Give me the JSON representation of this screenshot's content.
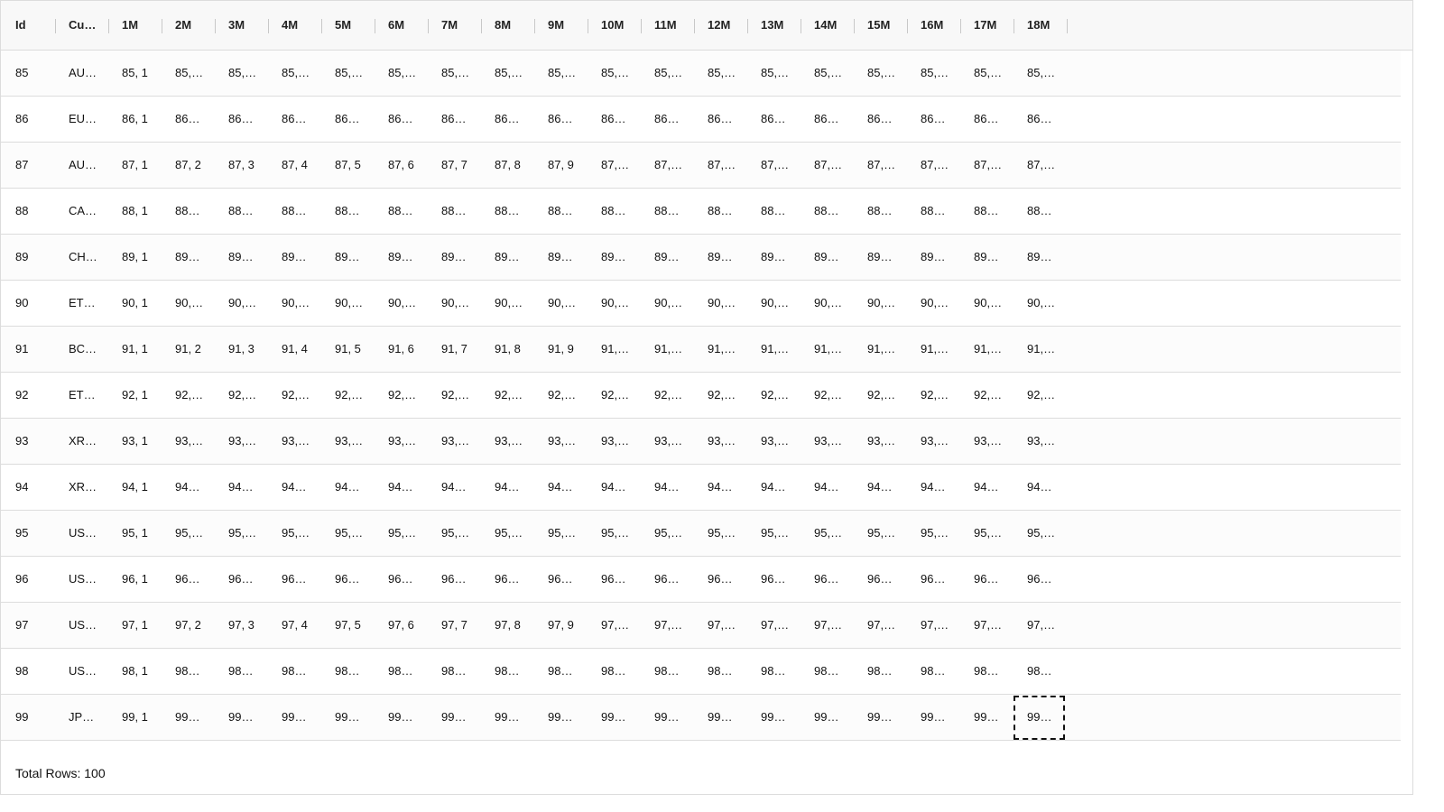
{
  "table": {
    "columns": [
      "Id",
      "Cu…",
      "1M",
      "2M",
      "3M",
      "4M",
      "5M",
      "6M",
      "7M",
      "8M",
      "9M",
      "10M",
      "11M",
      "12M",
      "13M",
      "14M",
      "15M",
      "16M",
      "17M",
      "18M"
    ],
    "rows": [
      [
        "85",
        "AU…",
        "85, 1",
        "85,…",
        "85,…",
        "85,…",
        "85,…",
        "85,…",
        "85,…",
        "85,…",
        "85,…",
        "85,…",
        "85,…",
        "85,…",
        "85,…",
        "85,…",
        "85,…",
        "85,…",
        "85,…",
        "85,…"
      ],
      [
        "86",
        "EU…",
        "86, 1",
        "86…",
        "86…",
        "86…",
        "86…",
        "86…",
        "86…",
        "86…",
        "86…",
        "86…",
        "86…",
        "86…",
        "86…",
        "86…",
        "86…",
        "86…",
        "86…",
        "86…"
      ],
      [
        "87",
        "AU…",
        "87, 1",
        "87, 2",
        "87, 3",
        "87, 4",
        "87, 5",
        "87, 6",
        "87, 7",
        "87, 8",
        "87, 9",
        "87,…",
        "87,…",
        "87,…",
        "87,…",
        "87,…",
        "87,…",
        "87,…",
        "87,…",
        "87,…"
      ],
      [
        "88",
        "CA…",
        "88, 1",
        "88…",
        "88…",
        "88…",
        "88…",
        "88…",
        "88…",
        "88…",
        "88…",
        "88…",
        "88…",
        "88…",
        "88…",
        "88…",
        "88…",
        "88…",
        "88…",
        "88…"
      ],
      [
        "89",
        "CH…",
        "89, 1",
        "89…",
        "89…",
        "89…",
        "89…",
        "89…",
        "89…",
        "89…",
        "89…",
        "89…",
        "89…",
        "89…",
        "89…",
        "89…",
        "89…",
        "89…",
        "89…",
        "89…"
      ],
      [
        "90",
        "ET…",
        "90, 1",
        "90,…",
        "90,…",
        "90,…",
        "90,…",
        "90,…",
        "90,…",
        "90,…",
        "90,…",
        "90,…",
        "90,…",
        "90,…",
        "90,…",
        "90,…",
        "90,…",
        "90,…",
        "90,…",
        "90,…"
      ],
      [
        "91",
        "BC…",
        "91, 1",
        "91, 2",
        "91, 3",
        "91, 4",
        "91, 5",
        "91, 6",
        "91, 7",
        "91, 8",
        "91, 9",
        "91,…",
        "91,…",
        "91,…",
        "91,…",
        "91,…",
        "91,…",
        "91,…",
        "91,…",
        "91,…"
      ],
      [
        "92",
        "ET…",
        "92, 1",
        "92,…",
        "92,…",
        "92,…",
        "92,…",
        "92,…",
        "92,…",
        "92,…",
        "92,…",
        "92,…",
        "92,…",
        "92,…",
        "92,…",
        "92,…",
        "92,…",
        "92,…",
        "92,…",
        "92,…"
      ],
      [
        "93",
        "XR…",
        "93, 1",
        "93,…",
        "93,…",
        "93,…",
        "93,…",
        "93,…",
        "93,…",
        "93,…",
        "93,…",
        "93,…",
        "93,…",
        "93,…",
        "93,…",
        "93,…",
        "93,…",
        "93,…",
        "93,…",
        "93,…"
      ],
      [
        "94",
        "XR…",
        "94, 1",
        "94…",
        "94…",
        "94…",
        "94…",
        "94…",
        "94…",
        "94…",
        "94…",
        "94…",
        "94…",
        "94…",
        "94…",
        "94…",
        "94…",
        "94…",
        "94…",
        "94…"
      ],
      [
        "95",
        "US…",
        "95, 1",
        "95,…",
        "95,…",
        "95,…",
        "95,…",
        "95,…",
        "95,…",
        "95,…",
        "95,…",
        "95,…",
        "95,…",
        "95,…",
        "95,…",
        "95,…",
        "95,…",
        "95,…",
        "95,…",
        "95,…"
      ],
      [
        "96",
        "US…",
        "96, 1",
        "96…",
        "96…",
        "96…",
        "96…",
        "96…",
        "96…",
        "96…",
        "96…",
        "96…",
        "96…",
        "96…",
        "96…",
        "96…",
        "96…",
        "96…",
        "96…",
        "96…"
      ],
      [
        "97",
        "US…",
        "97, 1",
        "97, 2",
        "97, 3",
        "97, 4",
        "97, 5",
        "97, 6",
        "97, 7",
        "97, 8",
        "97, 9",
        "97,…",
        "97,…",
        "97,…",
        "97,…",
        "97,…",
        "97,…",
        "97,…",
        "97,…",
        "97,…"
      ],
      [
        "98",
        "US…",
        "98, 1",
        "98…",
        "98…",
        "98…",
        "98…",
        "98…",
        "98…",
        "98…",
        "98…",
        "98…",
        "98…",
        "98…",
        "98…",
        "98…",
        "98…",
        "98…",
        "98…",
        "98…"
      ],
      [
        "99",
        "JP…",
        "99, 1",
        "99…",
        "99…",
        "99…",
        "99…",
        "99…",
        "99…",
        "99…",
        "99…",
        "99…",
        "99…",
        "99…",
        "99…",
        "99…",
        "99…",
        "99…",
        "99…",
        "99…"
      ]
    ]
  },
  "footer": {
    "total_rows": "Total Rows: 100"
  }
}
